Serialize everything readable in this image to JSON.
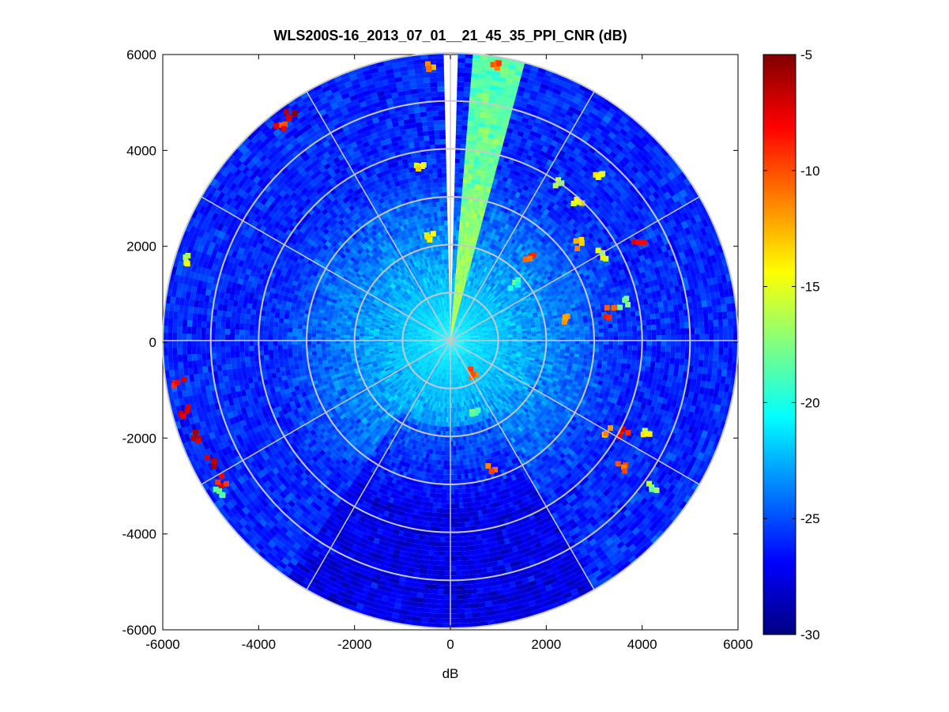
{
  "window": {
    "background": "#ffffff"
  },
  "chart_data": {
    "type": "heatmap",
    "subtype": "polar-ppi",
    "title": "WLS200S-16_2013_07_01__21_45_35_PPI_CNR (dB)",
    "xlabel": "dB",
    "ylabel": "",
    "xlim": [
      -6000,
      6000
    ],
    "ylim": [
      -6000,
      6000
    ],
    "xticks": [
      "-6000",
      "-4000",
      "-2000",
      "0",
      "2000",
      "4000",
      "6000"
    ],
    "yticks": [
      "6000",
      "4000",
      "2000",
      "0",
      "-2000",
      "-4000",
      "-6000"
    ],
    "max_range": 6000,
    "range_rings": [
      1000,
      2000,
      3000,
      4000,
      5000,
      6000
    ],
    "spoke_angles_deg": [
      0,
      30,
      60,
      90,
      120,
      150,
      180,
      210,
      240,
      270,
      300,
      330
    ],
    "grid": true,
    "colorbar": {
      "colormap": "jet",
      "min": -30,
      "max": -5,
      "ticks": [
        "-5",
        "-10",
        "-15",
        "-20",
        "-25",
        "-30"
      ],
      "tick_values": [
        -5,
        -10,
        -15,
        -20,
        -25,
        -30
      ]
    },
    "field": {
      "near_range_value": -21,
      "far_range_value": -26,
      "noise_std": 1.4,
      "no_data_sector_deg": [
        -1.5,
        1.5
      ],
      "enhanced_sector": {
        "from_deg": 4,
        "to_deg": 15,
        "value_near": -16,
        "value_far": -19
      },
      "darker_sector": {
        "from_deg": 150,
        "to_deg": 215,
        "delta": -1.5
      }
    },
    "hotspots": [
      {
        "x": -5450,
        "y": -1500,
        "value": -7
      },
      {
        "x": -5200,
        "y": -2000,
        "value": -6
      },
      {
        "x": -4950,
        "y": -2500,
        "value": -6
      },
      {
        "x": -4700,
        "y": -2900,
        "value": -8
      },
      {
        "x": -5600,
        "y": -900,
        "value": -8
      },
      {
        "x": -4800,
        "y": -3200,
        "value": -18
      },
      {
        "x": -5500,
        "y": 1700,
        "value": -15
      },
      {
        "x": -3300,
        "y": 4700,
        "value": -6
      },
      {
        "x": -3500,
        "y": 4500,
        "value": -9
      },
      {
        "x": -600,
        "y": 3700,
        "value": -14
      },
      {
        "x": -300,
        "y": 5700,
        "value": -12
      },
      {
        "x": 1000,
        "y": 5800,
        "value": -10
      },
      {
        "x": 2300,
        "y": 3300,
        "value": -16
      },
      {
        "x": 2700,
        "y": 2900,
        "value": -14
      },
      {
        "x": 3200,
        "y": 3400,
        "value": -15
      },
      {
        "x": 2700,
        "y": 2000,
        "value": -12
      },
      {
        "x": 3200,
        "y": 1800,
        "value": -15
      },
      {
        "x": 4000,
        "y": 2000,
        "value": -8
      },
      {
        "x": 1700,
        "y": 1700,
        "value": -10
      },
      {
        "x": 2500,
        "y": 400,
        "value": -13
      },
      {
        "x": 3400,
        "y": 600,
        "value": -10
      },
      {
        "x": 3700,
        "y": 800,
        "value": -18
      },
      {
        "x": 3300,
        "y": -1900,
        "value": -12
      },
      {
        "x": 3700,
        "y": -1900,
        "value": -8
      },
      {
        "x": 4100,
        "y": -1900,
        "value": -15
      },
      {
        "x": 3600,
        "y": -2600,
        "value": -11
      },
      {
        "x": 4300,
        "y": -3000,
        "value": -17
      },
      {
        "x": 600,
        "y": -1500,
        "value": -18
      },
      {
        "x": 900,
        "y": -2700,
        "value": -11
      },
      {
        "x": 500,
        "y": -700,
        "value": -10
      },
      {
        "x": -400,
        "y": 2200,
        "value": -15
      },
      {
        "x": 1400,
        "y": 1200,
        "value": -19
      }
    ]
  }
}
